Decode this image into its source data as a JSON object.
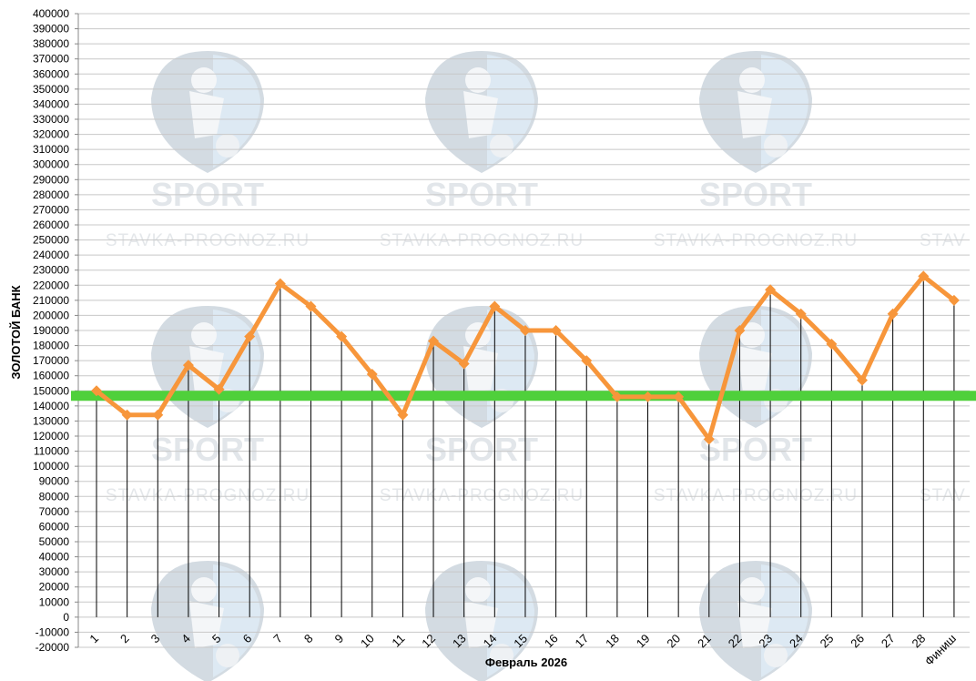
{
  "watermark": {
    "word": "SPORT",
    "url": "STAVKA-PROGNOZ.RU",
    "url_clipped": "STAV"
  },
  "chart_data": {
    "type": "line",
    "title": "",
    "xlabel": "Февраль 2026",
    "ylabel": "ЗОЛОТОЙ БАНК",
    "ylim": [
      -20000,
      400000
    ],
    "ytick_step": 10000,
    "grid": true,
    "categories": [
      "1",
      "2",
      "3",
      "4",
      "5",
      "6",
      "7",
      "8",
      "9",
      "10",
      "11",
      "12",
      "13",
      "14",
      "15",
      "16",
      "17",
      "18",
      "19",
      "20",
      "21",
      "22",
      "23",
      "24",
      "25",
      "26",
      "27",
      "28",
      "Финиш"
    ],
    "series": [
      {
        "color": "#f7963b",
        "values": [
          150000,
          134000,
          134000,
          167000,
          151000,
          186000,
          221000,
          206000,
          186000,
          161000,
          134000,
          183000,
          168000,
          206000,
          190000,
          190000,
          170000,
          146000,
          146000,
          146000,
          118000,
          190000,
          217000,
          201000,
          181000,
          157000,
          201000,
          226000,
          210000
        ]
      }
    ],
    "reference_line": {
      "value": 147000,
      "color": "#4fd03b"
    },
    "drop_line_color": "#000000",
    "grid_color": "#c8c8c8"
  }
}
